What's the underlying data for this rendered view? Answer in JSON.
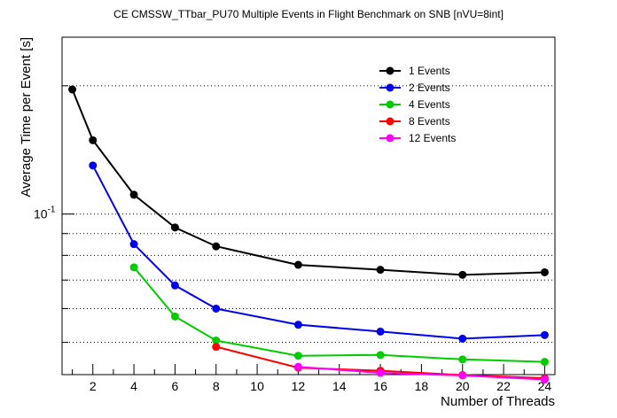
{
  "chart_data": {
    "type": "line",
    "title": "CE CMSSW_TTbar_PU70 Multiple Events in Flight Benchmark on SNB [nVU=8int]",
    "xlabel": "Number of Threads",
    "ylabel": "Average Time per Event [s]",
    "xlim": [
      0.5,
      24.5
    ],
    "ylim": [
      0.042,
      0.26
    ],
    "yscale": "log",
    "grid_y": true,
    "grid_x": false,
    "legend_position": "top-right",
    "x_ticks": [
      2,
      4,
      6,
      8,
      10,
      12,
      14,
      16,
      18,
      20,
      22,
      24
    ],
    "y_tick_labels": [
      {
        "value": 0.1,
        "label": "10^-1"
      }
    ],
    "series": [
      {
        "name": "1 Events",
        "color": "#000000",
        "x": [
          1,
          2,
          4,
          6,
          8,
          12,
          16,
          20,
          24
        ],
        "y": [
          0.196,
          0.149,
          0.111,
          0.093,
          0.084,
          0.076,
          0.074,
          0.072,
          0.073
        ]
      },
      {
        "name": "2 Events",
        "color": "#0000ee",
        "x": [
          2,
          4,
          6,
          8,
          12,
          16,
          20,
          24
        ],
        "y": [
          0.13,
          0.085,
          0.068,
          0.06,
          0.055,
          0.053,
          0.051,
          0.052
        ]
      },
      {
        "name": "4 Events",
        "color": "#00cc00",
        "x": [
          4,
          6,
          8,
          12,
          16,
          20,
          24
        ],
        "y": [
          0.075,
          0.0575,
          0.0505,
          0.0465,
          0.0467,
          0.0456,
          0.045
        ]
      },
      {
        "name": "8 Events",
        "color": "#ff0000",
        "x": [
          8,
          12,
          16,
          20,
          24
        ],
        "y": [
          0.0488,
          0.0436,
          0.0429,
          0.0419,
          0.0412
        ]
      },
      {
        "name": "12 Events",
        "color": "#ff00ff",
        "x": [
          12,
          16,
          20,
          24
        ],
        "y": [
          0.0438,
          0.0424,
          0.0418,
          0.0409
        ]
      }
    ]
  }
}
